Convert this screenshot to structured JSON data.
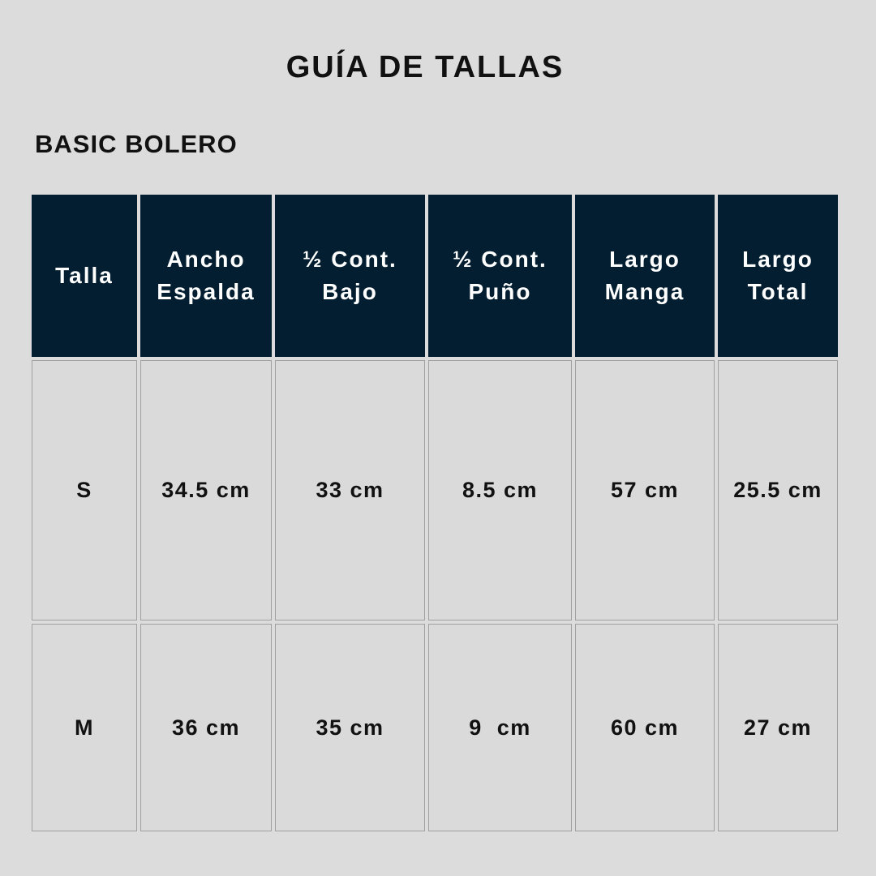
{
  "title": "GUÍA DE TALLAS",
  "subtitle": "BASIC BOLERO",
  "table": {
    "headers": [
      [
        "Talla"
      ],
      [
        "Ancho",
        "Espalda"
      ],
      [
        "½ Cont.",
        "Bajo"
      ],
      [
        "½ Cont.",
        "Puño"
      ],
      [
        "Largo",
        "Manga"
      ],
      [
        "Largo",
        "Total"
      ]
    ],
    "rows": [
      [
        "S",
        "34.5 cm",
        "33 cm",
        "8.5 cm",
        "57 cm",
        "25.5 cm"
      ],
      [
        "M",
        "36 cm",
        "35 cm",
        "9  cm",
        "60 cm",
        "27 cm"
      ]
    ]
  },
  "colors": {
    "header_bg": "#021e30",
    "background": "#dcdcdc"
  }
}
